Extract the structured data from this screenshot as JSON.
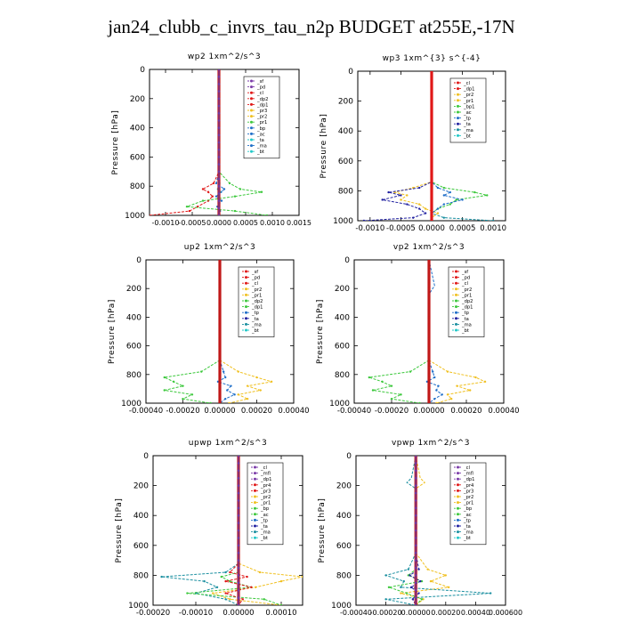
{
  "page_title": "jan24_clubb_c_invrs_tau_n2p  BUDGET at255E,-17N",
  "chart_data": [
    {
      "type": "line",
      "title": "wp2   1xm^2/s^3",
      "ylabel": "Pressure [hPa]",
      "ylim": [
        1000,
        0
      ],
      "yticks": [
        0,
        200,
        400,
        600,
        800,
        1000
      ],
      "xlim": [
        -0.0013,
        0.0015
      ],
      "xticks": [
        -0.001,
        -0.0005,
        0.0,
        0.0005,
        0.001,
        0.0015
      ],
      "xticklabels": [
        "-0.0010",
        "-0.0005",
        "0.0000",
        "0.0005",
        "0.0010",
        "0.0015"
      ],
      "xtick_layout": "crowded",
      "pressure": [
        0,
        500,
        700,
        780,
        820,
        840,
        870,
        900,
        940,
        970,
        1000
      ],
      "legend": [
        "_sf",
        "_pd",
        "_cl",
        "_dp2",
        "_dp1",
        "_pr3",
        "_pr2",
        "_pr1",
        "_bp",
        "_ac",
        "_ta",
        "_ma",
        "_bt"
      ],
      "series": [
        {
          "name": "_dp1",
          "color": "#e01818",
          "values": [
            0,
            0,
            0,
            -0.0001,
            -0.0003,
            -0.0002,
            -0.00012,
            -0.0002,
            -0.0004,
            -0.00055,
            -0.0013
          ]
        },
        {
          "name": "_pr1",
          "color": "#3cc83c",
          "values": [
            0,
            0,
            0,
            0.0002,
            0.0004,
            0.0008,
            0.0003,
            -0.0003,
            -0.0006,
            0.0003,
            0.0009
          ]
        },
        {
          "name": "_bp",
          "color": "#1e6ec8",
          "values": [
            0,
            0,
            0,
            -5e-05,
            0.0001,
            4e-05,
            -5e-05,
            5e-05,
            -3e-05,
            2e-05,
            0
          ]
        },
        {
          "name": "_bt",
          "color": "#20c8c8",
          "values": [
            0,
            0,
            0,
            1e-05,
            -2e-05,
            2e-05,
            -1e-05,
            1e-05,
            0,
            0,
            0
          ]
        }
      ],
      "center_line": {
        "color": "#c01818",
        "overlay": "#6a3aa8"
      },
      "legend_colors": [
        "#7a3aa8",
        "#7a3aa8",
        "#e01818",
        "#e01818",
        "#e01818",
        "#f0c020",
        "#f0c020",
        "#3cc83c",
        "#1e6ec8",
        "#1e6ec8",
        "#20c8c8",
        "#1e6ec8",
        "#20c8c8"
      ]
    },
    {
      "type": "line",
      "title": "wp3   1xm^{3} s^{-4}",
      "ylabel": "Pressure [hPa]",
      "ylim": [
        1000,
        0
      ],
      "yticks": [
        0,
        200,
        400,
        600,
        800,
        1000
      ],
      "xlim": [
        -0.0012,
        0.0012
      ],
      "xticks": [
        -0.001,
        -0.0005,
        0.0,
        0.0005,
        0.001
      ],
      "xticklabels": [
        "-0.0010",
        "-0.0005",
        "0.0000",
        "0.0005",
        "0.0010"
      ],
      "pressure": [
        0,
        600,
        740,
        780,
        810,
        830,
        860,
        890,
        920,
        950,
        980,
        1000
      ],
      "legend": [
        "_cl",
        "_dp1",
        "_pr2",
        "_pr1",
        "_bp1",
        "_ac",
        "_tp",
        "_ta",
        "_ma",
        "_bt"
      ],
      "series": [
        {
          "name": "_pr1",
          "color": "#f0c020",
          "values": [
            0,
            0,
            0,
            -0.0003,
            -0.0006,
            -0.0004,
            -0.0005,
            -0.0002,
            -0.0001,
            0.0001,
            0,
            0
          ]
        },
        {
          "name": "_ac",
          "color": "#3cc83c",
          "values": [
            0,
            0,
            0,
            0.0002,
            0.0007,
            0.0009,
            0.0004,
            0.0003,
            0.0001,
            0,
            0,
            0
          ]
        },
        {
          "name": "_tp",
          "color": "#1e6ec8",
          "values": [
            0,
            0,
            0,
            0.0001,
            0.0003,
            0.0002,
            0.0005,
            0.0002,
            0.0001,
            0,
            0,
            0
          ]
        },
        {
          "name": "_ta",
          "color": "#2020a0",
          "values": [
            0,
            0,
            0,
            -0.0002,
            -0.0007,
            -0.0005,
            -0.0008,
            -0.0004,
            -0.0002,
            -0.0001,
            -0.0003,
            -0.0011
          ]
        },
        {
          "name": "_ma",
          "color": "#1a8fa0",
          "values": [
            0,
            0,
            0,
            0,
            0,
            0,
            0,
            0,
            0,
            0,
            0.0002,
            0.001
          ]
        }
      ],
      "center_line": {
        "color": "#e01818",
        "overlay": "#e01818"
      },
      "legend_colors": [
        "#e01818",
        "#e01818",
        "#f0c020",
        "#f0c020",
        "#3cc83c",
        "#3cc83c",
        "#1e6ec8",
        "#2020a0",
        "#1a8fa0",
        "#20c8c8"
      ]
    },
    {
      "type": "line",
      "title": "up2   1xm^2/s^3",
      "ylabel": "Pressure [hPa]",
      "ylim": [
        1000,
        0
      ],
      "yticks": [
        0,
        200,
        400,
        600,
        800,
        1000
      ],
      "xlim": [
        -0.0004,
        0.0004
      ],
      "xticks": [
        -0.0004,
        -0.0002,
        0.0,
        0.0002,
        0.0004
      ],
      "xticklabels": [
        "-0.00040",
        "-0.00020",
        "0.00000",
        "0.00020",
        "0.00040"
      ],
      "pressure": [
        0,
        200,
        260,
        700,
        780,
        820,
        850,
        880,
        910,
        940,
        970,
        1000
      ],
      "legend": [
        "_sf",
        "_pd",
        "_cl",
        "_pr2",
        "_pr1",
        "_dp2",
        "_dp1",
        "_tp",
        "_ta",
        "_ma",
        "_bt"
      ],
      "series": [
        {
          "name": "_pr1",
          "color": "#f0c020",
          "values": [
            0,
            0,
            0,
            0,
            0.0001,
            0.0002,
            0.00028,
            0.00015,
            0.00022,
            0.0001,
            0.00015,
            5e-05
          ]
        },
        {
          "name": "_dp1",
          "color": "#3cc83c",
          "values": [
            0,
            0,
            0,
            0,
            -0.0001,
            -0.0003,
            -0.00025,
            -0.0002,
            -0.0003,
            -0.00015,
            -0.0002,
            -5e-05
          ]
        },
        {
          "name": "_tp",
          "color": "#1e6ec8",
          "values": [
            0,
            0,
            0,
            0,
            2e-05,
            3e-05,
            -1e-05,
            6e-05,
            4e-05,
            8e-05,
            3e-05,
            0
          ]
        }
      ],
      "center_line": {
        "color": "#c01818",
        "overlay": "#c01818"
      },
      "legend_colors": [
        "#e01818",
        "#e01818",
        "#e01818",
        "#f0c020",
        "#f0c020",
        "#3cc83c",
        "#3cc83c",
        "#1e6ec8",
        "#2020a0",
        "#1a8fa0",
        "#20c8c8"
      ]
    },
    {
      "type": "line",
      "title": "vp2   1xm^2/s^3",
      "ylabel": "Pressure [hPa]",
      "ylim": [
        1000,
        0
      ],
      "yticks": [
        0,
        200,
        400,
        600,
        800,
        1000
      ],
      "xlim": [
        -0.0004,
        0.0004
      ],
      "xticks": [
        -0.0004,
        -0.0002,
        0.0,
        0.0002,
        0.0004
      ],
      "xticklabels": [
        "-0.00040",
        "-0.00020",
        "0.00000",
        "0.00020",
        "0.00040"
      ],
      "pressure": [
        0,
        180,
        240,
        700,
        780,
        820,
        850,
        880,
        910,
        940,
        970,
        1000
      ],
      "legend": [
        "_sf",
        "_pd",
        "_cl",
        "_pr2",
        "_pr1",
        "_dp2",
        "_dp1",
        "_tp",
        "_ta",
        "_ma",
        "_bt"
      ],
      "series": [
        {
          "name": "_pr1",
          "color": "#f0c020",
          "values": [
            0,
            0,
            0,
            0,
            0.0001,
            0.00025,
            0.0003,
            0.00015,
            0.00022,
            0.0001,
            0.00012,
            4e-05
          ]
        },
        {
          "name": "_dp1",
          "color": "#3cc83c",
          "values": [
            0,
            0,
            0,
            0,
            -0.0001,
            -0.00032,
            -0.00025,
            -0.0002,
            -0.0003,
            -0.00015,
            -0.0002,
            -5e-05
          ]
        },
        {
          "name": "_tp",
          "color": "#1e6ec8",
          "values": [
            0,
            3e-05,
            0,
            0,
            2e-05,
            3e-05,
            -1e-05,
            5e-05,
            4e-05,
            7e-05,
            3e-05,
            0
          ]
        }
      ],
      "center_line": {
        "color": "#c01818",
        "overlay": "#c01818"
      },
      "legend_colors": [
        "#e01818",
        "#e01818",
        "#e01818",
        "#f0c020",
        "#f0c020",
        "#3cc83c",
        "#3cc83c",
        "#1e6ec8",
        "#2020a0",
        "#1a8fa0",
        "#20c8c8"
      ]
    },
    {
      "type": "line",
      "title": "upwp   1xm^2/s^3",
      "ylabel": "Pressure [hPa]",
      "ylim": [
        1000,
        0
      ],
      "yticks": [
        0,
        200,
        400,
        600,
        800,
        1000
      ],
      "xlim": [
        -0.0002,
        0.00015
      ],
      "xticks": [
        -0.0002,
        -0.0001,
        0.0,
        0.0001
      ],
      "xticklabels": [
        "-0.00020",
        "-0.00010",
        "0.00000",
        "0.00010"
      ],
      "pressure": [
        0,
        650,
        720,
        780,
        810,
        840,
        880,
        920,
        960,
        1000
      ],
      "legend": [
        "_cl",
        "_mfl",
        "_dp1",
        "_pr4",
        "_pr3",
        "_pr2",
        "_pr1",
        "_bp",
        "_ac",
        "_tp",
        "_ta",
        "_ma",
        "_bt"
      ],
      "series": [
        {
          "name": "_pr1",
          "color": "#f0c020",
          "values": [
            0,
            0,
            0,
            5e-05,
            0.00015,
            0.0001,
            4e-05,
            -6e-05,
            -2e-05,
            0.0001
          ]
        },
        {
          "name": "_tp",
          "color": "#1a8fa0",
          "values": [
            0,
            0,
            0,
            -3e-05,
            -0.00018,
            -8e-05,
            -5e-05,
            -0.0001,
            -3e-05,
            0
          ]
        },
        {
          "name": "_ac",
          "color": "#3cc83c",
          "values": [
            0,
            0,
            0,
            0,
            -4e-05,
            -2e-05,
            3e-05,
            -0.00012,
            6e-05,
            0.0001
          ]
        },
        {
          "name": "_dp1",
          "color": "#e01818",
          "values": [
            0,
            0,
            0,
            -2e-05,
            2e-05,
            -3e-05,
            3e-05,
            -3e-05,
            1e-05,
            0
          ]
        }
      ],
      "center_line": {
        "color": "#c01818",
        "overlay": "#6a3aa8"
      },
      "legend_colors": [
        "#7a3aa8",
        "#7a3aa8",
        "#7a3aa8",
        "#e01818",
        "#e01818",
        "#f0c020",
        "#f0c020",
        "#3cc83c",
        "#3cc83c",
        "#1e6ec8",
        "#2020a0",
        "#1a8fa0",
        "#20c8c8"
      ]
    },
    {
      "type": "line",
      "title": "vpwp   1xm^2/s^3",
      "ylabel": "Pressure [hPa]",
      "ylim": [
        1000,
        0
      ],
      "yticks": [
        0,
        200,
        400,
        600,
        800,
        1000
      ],
      "xlim": [
        -0.0004,
        0.0006
      ],
      "xticks": [
        -0.0004,
        -0.0002,
        0.0,
        0.0002,
        0.0004,
        0.0006
      ],
      "xticklabels": [
        "-0.00040",
        "-0.00020",
        "0.00000",
        "0.00020",
        "0.00040",
        "0.000600"
      ],
      "xtick_layout": "crowded",
      "pressure": [
        0,
        150,
        180,
        220,
        650,
        760,
        800,
        840,
        880,
        920,
        960,
        1000
      ],
      "legend": [
        "_cl",
        "_mfl",
        "_dp1",
        "_pr4",
        "_pr3",
        "_pr2",
        "_pr1",
        "_bp",
        "_ac",
        "_tp",
        "_ta",
        "_ma",
        "_bt"
      ],
      "series": [
        {
          "name": "_pr1",
          "color": "#f0c020",
          "values": [
            0,
            3e-05,
            6e-05,
            0,
            0,
            8e-05,
            0.0002,
            0.0001,
            0.00022,
            -0.0001,
            5e-05,
            0
          ]
        },
        {
          "name": "_tp",
          "color": "#1a8fa0",
          "values": [
            0,
            -3e-05,
            -6e-05,
            0,
            0,
            -5e-05,
            -0.0002,
            -8e-05,
            -0.0001,
            0.0005,
            -0.0002,
            0
          ]
        },
        {
          "name": "_ac",
          "color": "#3cc83c",
          "values": [
            0,
            0,
            0,
            0,
            0,
            0,
            -5e-05,
            4e-05,
            -0.00018,
            -6e-05,
            4e-05,
            0
          ]
        },
        {
          "name": "_ta",
          "color": "#2020a0",
          "values": [
            0,
            0,
            0,
            0,
            0,
            2e-05,
            -4e-05,
            3e-05,
            -3e-05,
            2e-05,
            -2e-05,
            0
          ]
        }
      ],
      "center_line": {
        "color": "#c01818",
        "overlay": "#6a3aa8"
      },
      "legend_colors": [
        "#7a3aa8",
        "#7a3aa8",
        "#7a3aa8",
        "#e01818",
        "#e01818",
        "#f0c020",
        "#f0c020",
        "#3cc83c",
        "#3cc83c",
        "#1e6ec8",
        "#2020a0",
        "#1a8fa0",
        "#20c8c8"
      ]
    }
  ]
}
